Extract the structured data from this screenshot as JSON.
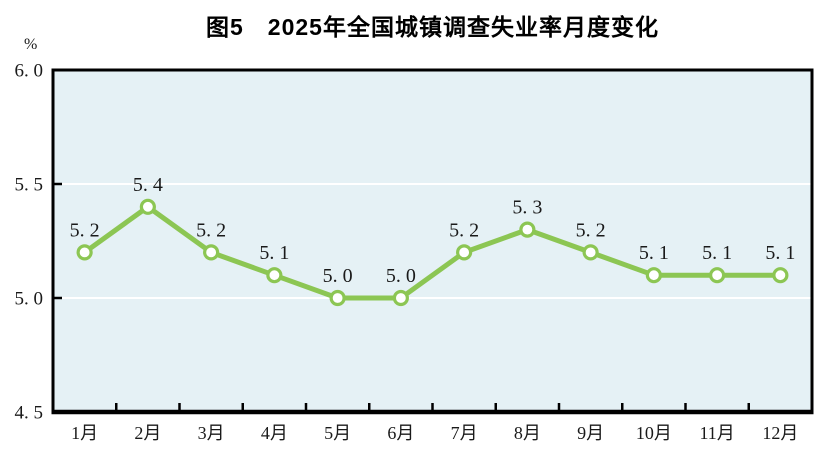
{
  "title": "图5　2025年全国城镇调查失业率月度变化",
  "unit_label": "%",
  "colors": {
    "line": "#8CC653",
    "marker_fill": "#FFFFFF",
    "plot_background": "#E5F1F5",
    "gridline": "#FFFFFF",
    "axis": "#000000",
    "text": "#1A1A1A"
  },
  "chart_data": {
    "type": "line",
    "title": "图5　2025年全国城镇调查失业率月度变化",
    "categories": [
      "1月",
      "2月",
      "3月",
      "4月",
      "5月",
      "6月",
      "7月",
      "8月",
      "9月",
      "10月",
      "11月",
      "12月"
    ],
    "values": [
      5.2,
      5.4,
      5.2,
      5.1,
      5.0,
      5.0,
      5.2,
      5.3,
      5.2,
      5.1,
      5.1,
      5.1
    ],
    "point_labels": [
      "5. 2",
      "5. 4",
      "5. 2",
      "5. 1",
      "5. 0",
      "5. 0",
      "5. 2",
      "5. 3",
      "5. 2",
      "5. 1",
      "5. 1",
      "5. 1"
    ],
    "series_name": "全国城镇调查失业率",
    "xlabel": "",
    "ylabel": "%",
    "ylim": [
      4.5,
      6.0
    ],
    "y_ticks": [
      4.5,
      5.0,
      5.5,
      6.0
    ],
    "y_tick_labels": [
      "4. 5",
      "5. 0",
      "5. 5",
      "6. 0"
    ],
    "grid": "horizontal-white-internal",
    "legend": "none",
    "marker": "open-circle"
  }
}
